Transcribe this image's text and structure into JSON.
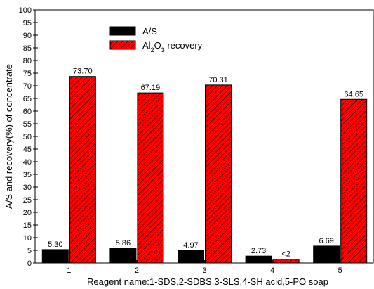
{
  "chart_data": {
    "type": "bar",
    "categories": [
      "1",
      "2",
      "3",
      "4",
      "5"
    ],
    "series": [
      {
        "name": "A/S",
        "values": [
          5.3,
          5.86,
          4.97,
          2.73,
          6.69
        ],
        "labels": [
          "5.30",
          "5.86",
          "4.97",
          "2.73",
          "6.69"
        ],
        "color": "#000000",
        "pattern": "solid"
      },
      {
        "name": "Al2O3 recovery",
        "name_parts": {
          "prefix": "Al",
          "sub1": "2",
          "mid": "O",
          "sub2": "3",
          "suffix": " recovery"
        },
        "values": [
          73.7,
          67.19,
          70.31,
          1.5,
          64.65
        ],
        "labels": [
          "73.70",
          "67.19",
          "70.31",
          "<2",
          "64.65"
        ],
        "color": "#ff0000",
        "pattern": "hatched"
      }
    ],
    "xlabel": "Reagent name:1-SDS,2-SDBS,3-SLS,4-SH acid,5-PO soap",
    "ylabel": "A/S and recovery(%) of concentrate",
    "ylim": [
      0,
      100
    ],
    "ytick_step": 5,
    "grid": false,
    "legend_position": "top-left"
  }
}
